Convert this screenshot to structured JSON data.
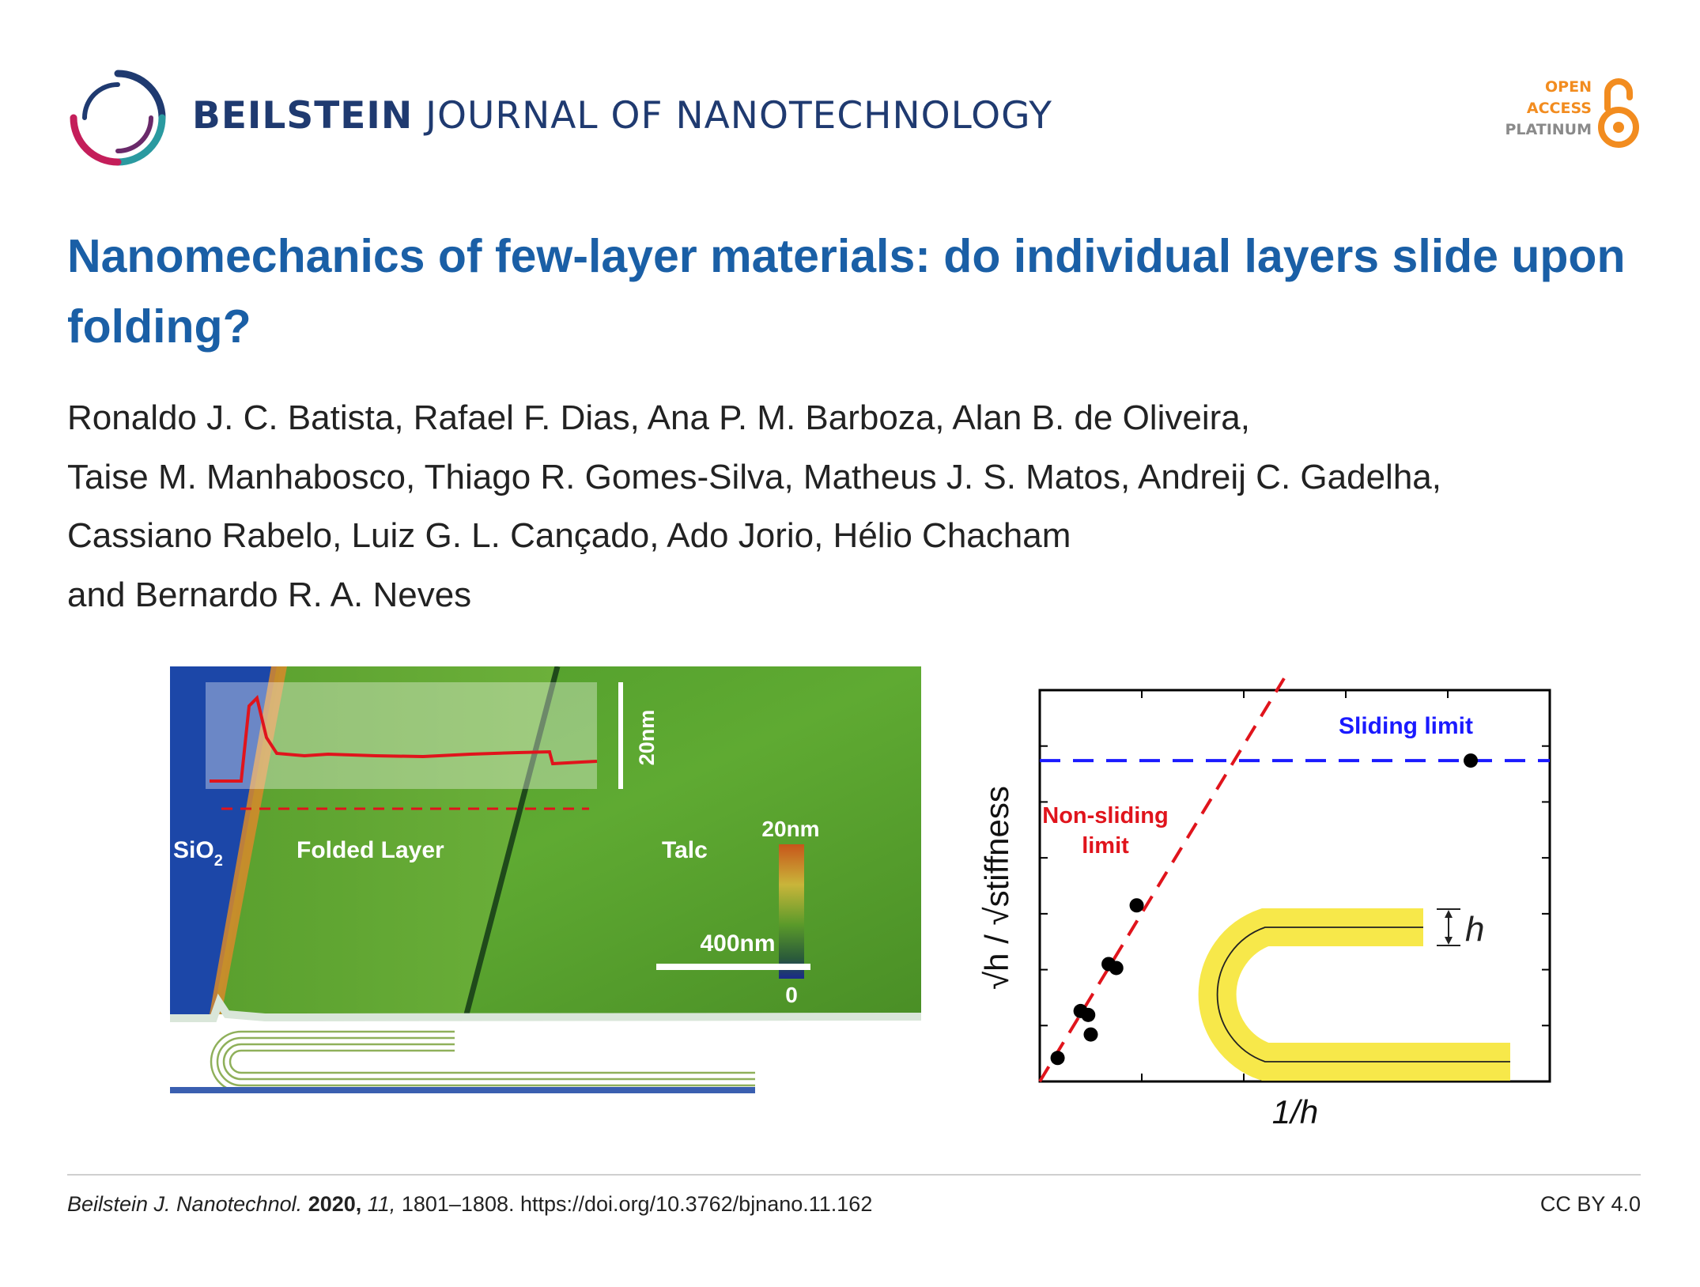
{
  "journal": {
    "name_bold": "BEILSTEIN",
    "name_rest": "JOURNAL OF NANOTECHNOLOGY",
    "brand_color": "#1f3a70",
    "logo_icon": "beilstein-ring-logo"
  },
  "open_access": {
    "line1": "OPEN",
    "line2": "ACCESS",
    "line3": "PLATINUM",
    "accent_color": "#f28c1f",
    "icon": "open-lock-icon"
  },
  "article": {
    "title": "Nanomechanics of few-layer materials: do individual layers slide upon folding?",
    "authors": [
      "Ronaldo J. C. Batista, Rafael F. Dias, Ana P. M. Barboza, Alan B. de Oliveira,",
      "Taise M. Manhabosco, Thiago R. Gomes-Silva, Matheus J. S. Matos, Andreij C. Gadelha,",
      "Cassiano Rabelo, Luiz G. L. Cançado, Ado Jorio, Hélio Chacham",
      "and Bernardo R. A. Neves"
    ],
    "title_color": "#1a5fa6"
  },
  "afm_image": {
    "label_sio2": "SiO",
    "label_sio2_sub": "2",
    "label_folded": "Folded Layer",
    "label_talc": "Talc",
    "scale_height": "20nm",
    "colorbar_max": "20nm",
    "colorbar_min": "0",
    "scale_bar": "400nm"
  },
  "plot": {
    "ylabel": "√h / √stiffness",
    "xlabel": "1/h",
    "sliding_label": "Sliding limit",
    "nonsliding_label_1": "Non-sliding",
    "nonsliding_label_2": "limit",
    "h_label": "h",
    "sliding_color": "#1a1aff",
    "nonsliding_color": "#e0141c",
    "fold_color": "#f7e84a"
  },
  "chart_data": {
    "type": "scatter",
    "xlabel": "1/h",
    "ylabel": "√h / √stiffness",
    "series": [
      {
        "points": [
          [
            0.035,
            0.06
          ],
          [
            0.08,
            0.18
          ],
          [
            0.095,
            0.17
          ],
          [
            0.1,
            0.12
          ],
          [
            0.135,
            0.3
          ],
          [
            0.15,
            0.29
          ],
          [
            0.19,
            0.45
          ],
          [
            0.845,
            0.82
          ]
        ]
      }
    ],
    "annotations": [
      "Sliding limit",
      "Non-sliding limit"
    ],
    "sliding_limit_y": 0.82,
    "nonsliding_line": {
      "slope": 2.15,
      "intercept": 0.0
    },
    "xlim": [
      0,
      1
    ],
    "ylim": [
      0,
      1
    ],
    "grid": false
  },
  "footer": {
    "journal_abbrev": "Beilstein J. Nanotechnol.",
    "year": "2020,",
    "volume": "11,",
    "pages_doi": "1801–1808. https://doi.org/10.3762/bjnano.11.162",
    "license": "CC BY 4.0"
  }
}
